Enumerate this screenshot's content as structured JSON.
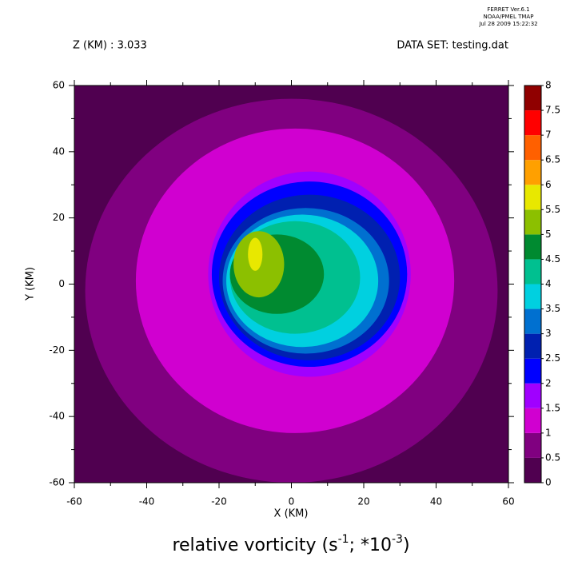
{
  "chart_data": {
    "type": "contour",
    "header": [
      "FERRET  Ver.6.1",
      "NOAA/PMEL TMAP",
      "Jul 28 2009 15:22:32"
    ],
    "subtitle_left": "Z (KM) : 3.033",
    "subtitle_right": "DATA SET: testing.dat",
    "x_label": "X (KM)",
    "y_label": "Y (KM)",
    "title_parts": [
      {
        "text": "relative vorticity (s",
        "sup": false
      },
      {
        "text": "-1",
        "sup": true
      },
      {
        "text": "; *10",
        "sup": false
      },
      {
        "text": "-3",
        "sup": true
      },
      {
        "text": ")",
        "sup": false
      }
    ],
    "xlim": [
      -60,
      60
    ],
    "ylim": [
      -60,
      60
    ],
    "xticks": [
      -60,
      -40,
      -20,
      0,
      20,
      40,
      60
    ],
    "yticks": [
      -60,
      -40,
      -20,
      0,
      20,
      40,
      60
    ],
    "levels": [
      0,
      0.5,
      1,
      1.5,
      2,
      2.5,
      3,
      3.5,
      4,
      4.5,
      5,
      5.5,
      6,
      6.5,
      7,
      7.5,
      8
    ],
    "colors": [
      "#500050",
      "#800080",
      "#d000d0",
      "#a000ff",
      "#0000ff",
      "#0020b0",
      "#0070d0",
      "#00d0e0",
      "#00c090",
      "#008a30",
      "#8cc000",
      "#e8e800",
      "#ffa000",
      "#ff6000",
      "#ff0000",
      "#900000"
    ],
    "background_level": 0,
    "regions": [
      {
        "level": 0.5,
        "center": [
          0,
          -2
        ],
        "radii": [
          57,
          58
        ]
      },
      {
        "level": 1,
        "center": [
          1,
          1
        ],
        "radii": [
          44,
          46
        ]
      },
      {
        "level": 1.5,
        "center": [
          5,
          3
        ],
        "radii": [
          28,
          31
        ]
      },
      {
        "level": 2,
        "center": [
          5,
          3
        ],
        "radii": [
          27,
          28
        ]
      },
      {
        "level": 2.5,
        "center": [
          5,
          2
        ],
        "radii": [
          25,
          25
        ]
      },
      {
        "level": 3,
        "center": [
          4,
          1
        ],
        "radii": [
          23,
          22
        ]
      },
      {
        "level": 3.5,
        "center": [
          3,
          1
        ],
        "radii": [
          21,
          20
        ]
      },
      {
        "level": 4,
        "center": [
          1,
          2
        ],
        "radii": [
          18,
          17
        ]
      },
      {
        "level": 4.5,
        "center": [
          -4,
          3
        ],
        "radii": [
          13,
          12
        ]
      },
      {
        "level": 5,
        "center": [
          -9,
          6
        ],
        "radii": [
          7,
          10
        ]
      },
      {
        "level": 5.5,
        "center": [
          -10,
          9
        ],
        "radii": [
          2,
          5
        ]
      }
    ]
  }
}
